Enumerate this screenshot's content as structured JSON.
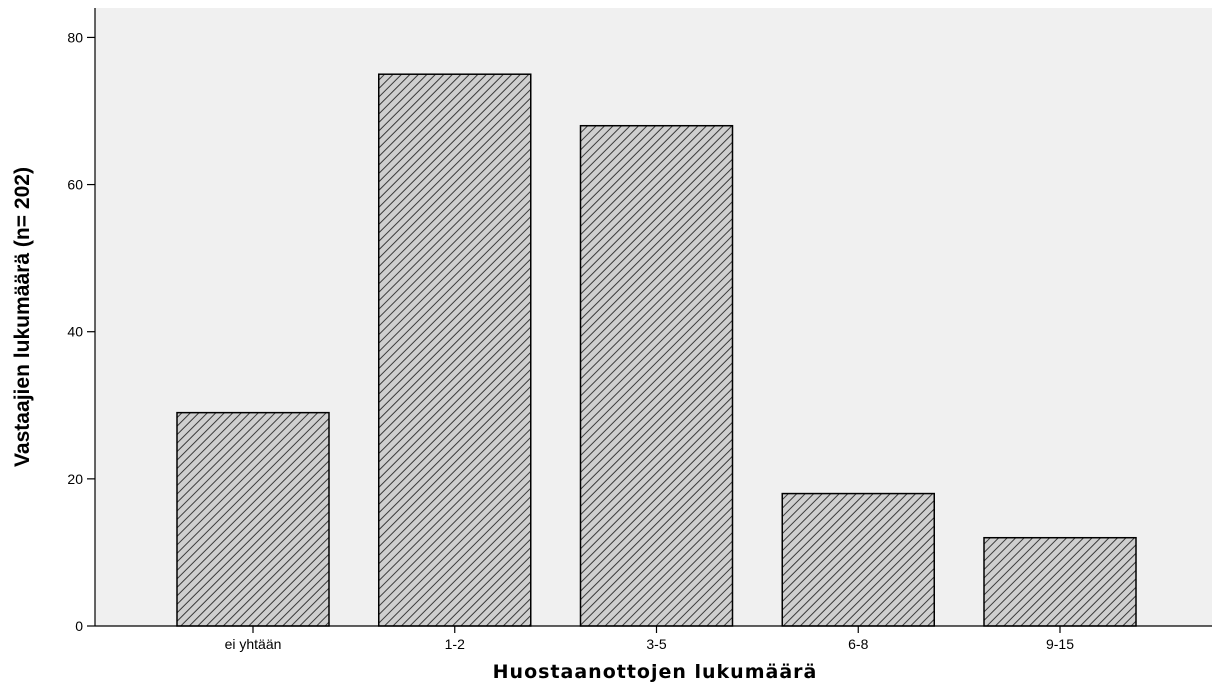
{
  "chart_data": {
    "type": "bar",
    "categories": [
      "ei yhtään",
      "1-2",
      "3-5",
      "6-8",
      "9-15"
    ],
    "values": [
      29,
      75,
      68,
      18,
      12
    ],
    "title": "",
    "xlabel": "Huostaanottojen lukumäärä",
    "ylabel": "Vastaajien lukumäärä (n= 202)",
    "ylim": [
      0,
      84
    ],
    "yticks": [
      0,
      20,
      40,
      60,
      80
    ],
    "grid": false,
    "legend": "none",
    "colors": {
      "plot_background": "#f0f0f0",
      "bar_fill": "#cfcfcf",
      "bar_hatch": "#3a3a3a",
      "bar_edge": "#000000",
      "axis": "#000000"
    }
  }
}
